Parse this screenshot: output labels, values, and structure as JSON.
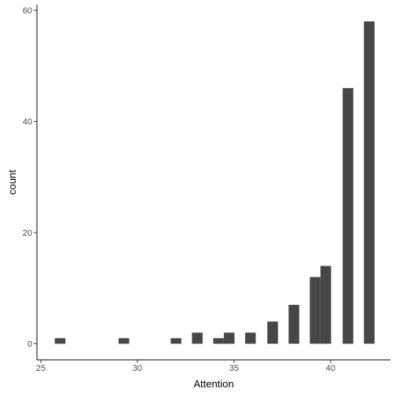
{
  "chart_data": {
    "type": "bar",
    "xlabel": "Attention",
    "ylabel": "count",
    "xlim": [
      24.8,
      43.1
    ],
    "ylim": [
      -2.9,
      61
    ],
    "bin_width": 0.55,
    "x_ticks": [
      25,
      30,
      35,
      40
    ],
    "y_ticks": [
      0,
      20,
      40,
      60
    ],
    "grid": false,
    "bar_color": "#474747",
    "bins": [
      {
        "x": 26.0,
        "count": 1
      },
      {
        "x": 29.3,
        "count": 1
      },
      {
        "x": 32.0,
        "count": 1
      },
      {
        "x": 33.1,
        "count": 2
      },
      {
        "x": 34.2,
        "count": 1
      },
      {
        "x": 34.75,
        "count": 2
      },
      {
        "x": 35.85,
        "count": 2
      },
      {
        "x": 37.0,
        "count": 4
      },
      {
        "x": 38.1,
        "count": 7
      },
      {
        "x": 39.2,
        "count": 12
      },
      {
        "x": 39.75,
        "count": 14
      },
      {
        "x": 40.9,
        "count": 46
      },
      {
        "x": 42.0,
        "count": 58
      }
    ]
  }
}
